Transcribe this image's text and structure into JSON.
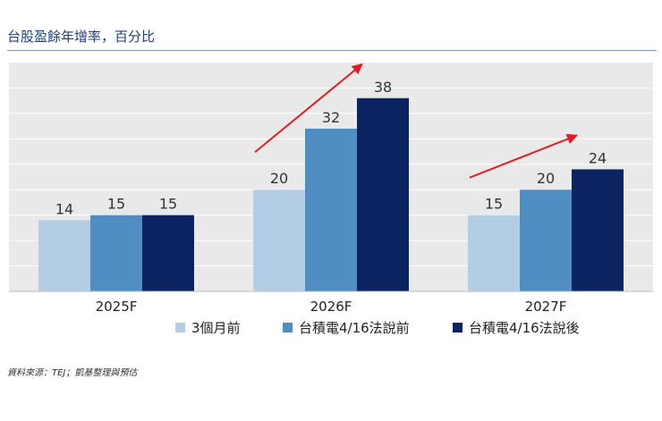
{
  "title": "台股盈餘年增率，百分比",
  "source": "資料來源：TEJ；凱基整理與預估",
  "colors": {
    "panel": "#e9e9ea",
    "grid": "#ffffff",
    "arrow": "#e11c24",
    "series": [
      "#b3cde5",
      "#4f8dc3",
      "#0b2461"
    ],
    "title": "#1f3f7a"
  },
  "chart_data": {
    "type": "bar",
    "title": "台股盈餘年增率，百分比",
    "categories": [
      "2025F",
      "2026F",
      "2027F"
    ],
    "series": [
      {
        "name": "3個月前",
        "values": [
          14,
          20,
          15
        ]
      },
      {
        "name": "台積電4/16法說前",
        "values": [
          15,
          32,
          20
        ]
      },
      {
        "name": "台積電4/16法說後",
        "values": [
          15,
          38,
          24
        ]
      }
    ],
    "ylim": [
      0,
      45
    ],
    "grid_step": 5,
    "legend": "bottom",
    "xlabel": "",
    "ylabel": "",
    "annotations": [
      {
        "type": "arrow",
        "category": "2026F",
        "description": "upward red arrow"
      },
      {
        "type": "arrow",
        "category": "2027F",
        "description": "upward red arrow"
      }
    ]
  }
}
